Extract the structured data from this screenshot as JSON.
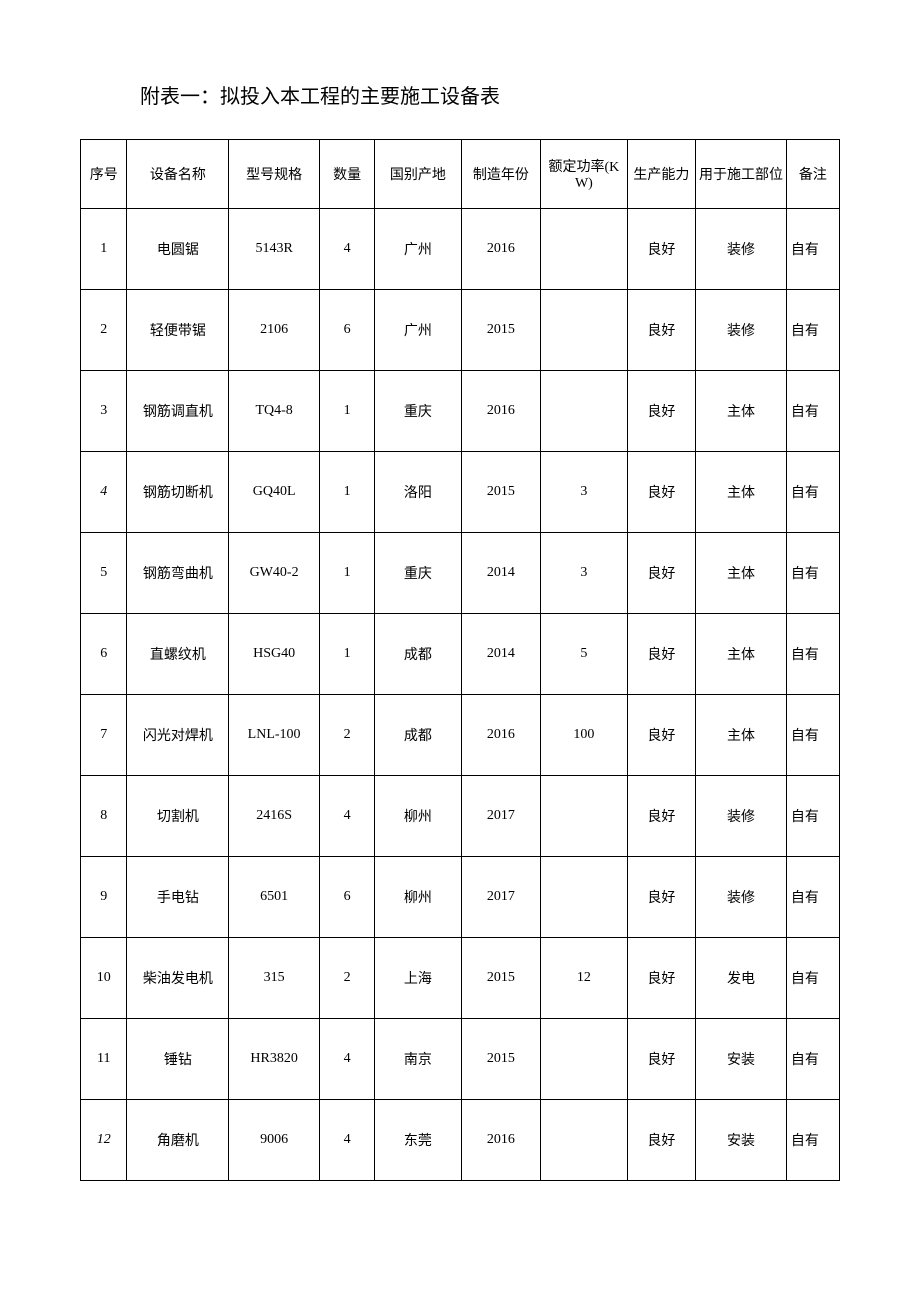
{
  "title": "附表一：拟投入本工程的主要施工设备表",
  "table": {
    "type": "table",
    "columns": [
      {
        "label": "序号",
        "class": "col-seq",
        "align": "center"
      },
      {
        "label": "设备名称",
        "class": "col-name",
        "align": "center"
      },
      {
        "label": "型号规格",
        "class": "col-model",
        "align": "center"
      },
      {
        "label": "数量",
        "class": "col-qty",
        "align": "center"
      },
      {
        "label": "国别产地",
        "class": "col-origin",
        "align": "center"
      },
      {
        "label": "制造年份",
        "class": "col-year",
        "align": "center"
      },
      {
        "label": "额定功率(KW)",
        "class": "col-power",
        "align": "center"
      },
      {
        "label": "生产能力",
        "class": "col-capacity",
        "align": "center"
      },
      {
        "label": "用于施工部位",
        "class": "col-use",
        "align": "center"
      },
      {
        "label": "备注",
        "class": "col-remark",
        "align": "center"
      }
    ],
    "rows": [
      {
        "seq": "1",
        "name": "电圆锯",
        "model": "5143R",
        "qty": "4",
        "origin": "广州",
        "year": "2016",
        "power": "",
        "capacity": "良好",
        "use": "装修",
        "remark": "自有",
        "seq_italic": false
      },
      {
        "seq": "2",
        "name": "轻便带锯",
        "model": "2106",
        "qty": "6",
        "origin": "广州",
        "year": "2015",
        "power": "",
        "capacity": "良好",
        "use": "装修",
        "remark": "自有",
        "seq_italic": false
      },
      {
        "seq": "3",
        "name": "钢筋调直机",
        "model": "TQ4-8",
        "qty": "1",
        "origin": "重庆",
        "year": "2016",
        "power": "",
        "capacity": "良好",
        "use": "主体",
        "remark": "自有",
        "seq_italic": false
      },
      {
        "seq": "4",
        "name": "钢筋切断机",
        "model": "GQ40L",
        "qty": "1",
        "origin": "洛阳",
        "year": "2015",
        "power": "3",
        "capacity": "良好",
        "use": "主体",
        "remark": "自有",
        "seq_italic": true
      },
      {
        "seq": "5",
        "name": "钢筋弯曲机",
        "model": "GW40-2",
        "qty": "1",
        "origin": "重庆",
        "year": "2014",
        "power": "3",
        "capacity": "良好",
        "use": "主体",
        "remark": "自有",
        "seq_italic": false
      },
      {
        "seq": "6",
        "name": "直螺纹机",
        "model": "HSG40",
        "qty": "1",
        "origin": "成都",
        "year": "2014",
        "power": "5",
        "capacity": "良好",
        "use": "主体",
        "remark": "自有",
        "seq_italic": false
      },
      {
        "seq": "7",
        "name": "闪光对焊机",
        "model": "LNL-100",
        "qty": "2",
        "origin": "成都",
        "year": "2016",
        "power": "100",
        "capacity": "良好",
        "use": "主体",
        "remark": "自有",
        "seq_italic": false
      },
      {
        "seq": "8",
        "name": "切割机",
        "model": "2416S",
        "qty": "4",
        "origin": "柳州",
        "year": "2017",
        "power": "",
        "capacity": "良好",
        "use": "装修",
        "remark": "自有",
        "seq_italic": false
      },
      {
        "seq": "9",
        "name": "手电钻",
        "model": "6501",
        "qty": "6",
        "origin": "柳州",
        "year": "2017",
        "power": "",
        "capacity": "良好",
        "use": "装修",
        "remark": "自有",
        "seq_italic": false
      },
      {
        "seq": "10",
        "name": "柴油发电机",
        "model": "315",
        "qty": "2",
        "origin": "上海",
        "year": "2015",
        "power": "12",
        "capacity": "良好",
        "use": "发电",
        "remark": "自有",
        "seq_italic": false
      },
      {
        "seq": "11",
        "name": "锤钻",
        "model": "HR3820",
        "qty": "4",
        "origin": "南京",
        "year": "2015",
        "power": "",
        "capacity": "良好",
        "use": "安装",
        "remark": "自有",
        "seq_italic": false
      },
      {
        "seq": "12",
        "name": "角磨机",
        "model": "9006",
        "qty": "4",
        "origin": "东莞",
        "year": "2016",
        "power": "",
        "capacity": "良好",
        "use": "安装",
        "remark": "自有",
        "seq_italic": true
      }
    ],
    "border_color": "#000000",
    "background_color": "#ffffff",
    "text_color": "#000000",
    "header_fontsize": 14,
    "cell_fontsize": 14,
    "title_fontsize": 20
  }
}
